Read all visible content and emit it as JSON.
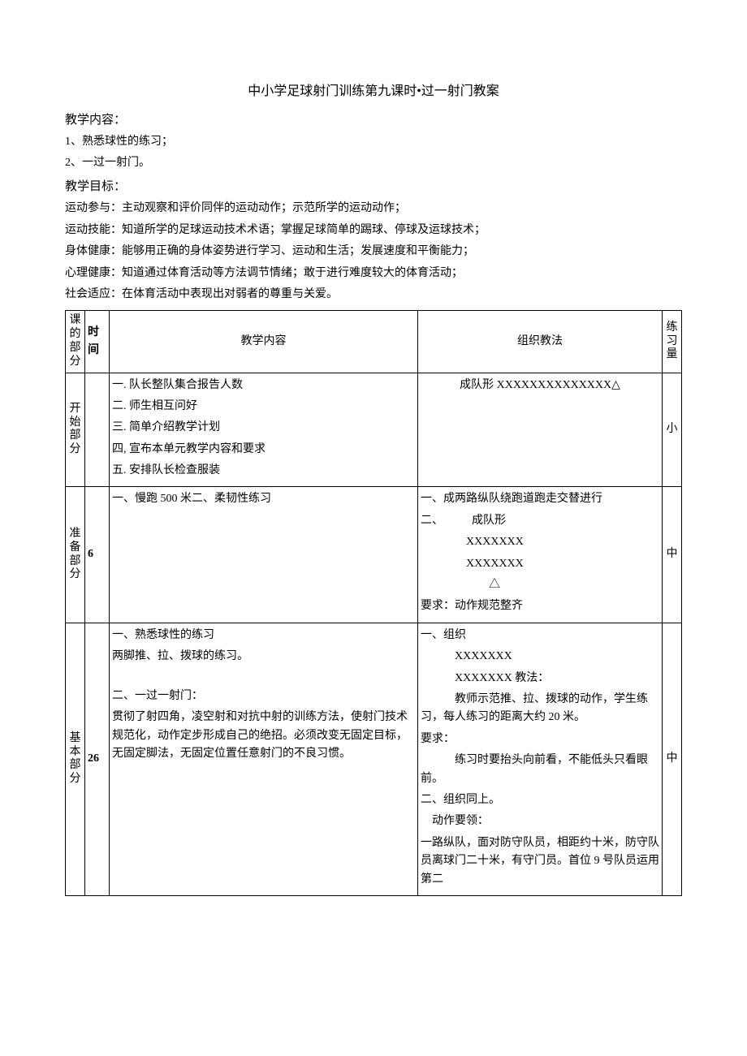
{
  "title": "中小学足球射门训练第九课时•过一射门教案",
  "sections": {
    "content_heading": "教学内容：",
    "content_lines": [
      "1、熟悉球性的练习；",
      "2、一过一射门。"
    ],
    "goal_heading": "教学目标：",
    "goal_lines": [
      "运动参与：主动观察和评价同伴的运动动作；示范所学的运动动作；",
      "运动技能：知道所学的足球运动技术术语；掌握足球简单的踢球、停球及运球技术；",
      "身体健康：能够用正确的身体姿势进行学习、运动和生活；发展速度和平衡能力；",
      "心理健康：知道通过体育活动等方法调节情绪；敢于进行难度较大的体育活动；",
      "社会适应：在体育活动中表现出对弱者的尊重与关爱。"
    ]
  },
  "table": {
    "headers": {
      "part": "课的部分",
      "time": "时间",
      "content": "教学内容",
      "method": "组织教法",
      "amount": "练习量"
    },
    "rows": [
      {
        "part": "开始部分",
        "time": "",
        "content": "一. 队长整队集合报告人数\n二. 师生相互问好\n三. 简单介绍教学计划\n四, 宣布本单元教学内容和要求\n五. 安排队长检查服装",
        "method_center": "成队形 XXXXXXXXXXXXXX△",
        "method_rest": "",
        "amount": "小"
      },
      {
        "part": "准备部分",
        "time": "6",
        "content": "一、慢跑 500 米二、柔韧性练习",
        "method": "一、成两路纵队绕跑道跑走交替进行\n二、　　　成队形\n　　　　XXXXXXX\n　　　　XXXXXXX\n　　　　　　△\n要求：动作规范整齐",
        "amount": "中"
      },
      {
        "part": "基本部分",
        "time": "26",
        "content": "一、熟悉球性的练习\n两脚推、拉、拨球的练习。\n\n二、一过一射门：\n贯彻了射四角，凌空射和对抗中射的训练方法，使射门技术规范化，动作定步形成自己的绝招。必须改变无固定目标，无固定脚法，无固定位置任意射门的不良习惯。",
        "method": "一、组织\n　　　XXXXXXX\n　　　XXXXXXX 教法：\n　　　教师示范推、拉、拨球的动作，学生练习，每人练习的距离大约 20 米。\n要求：\n　　　练习时要抬头向前看，不能低头只看眼前。\n二、组织同上。\n　动作要领：\n一路纵队，面对防守队员，相距约十米，防守队员离球门二十米，有守门员。首位 9 号队员运用第二",
        "amount": "中"
      }
    ]
  }
}
